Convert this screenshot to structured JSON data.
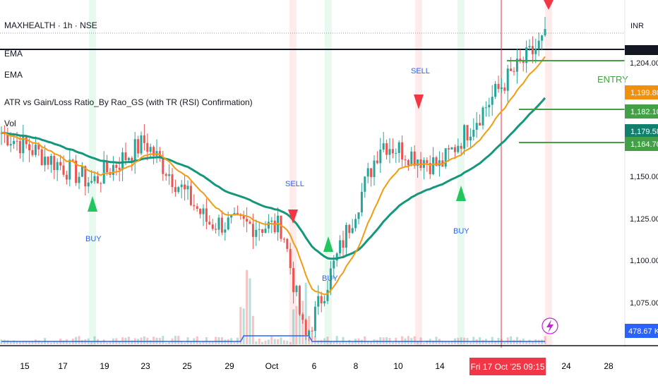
{
  "header": {
    "symbol": "MAXHEALTH · 1h · NSE",
    "indicator_1": "EMA",
    "indicator_2": "EMA",
    "indicator_3": "ATR vs Gain/Loss Ratio_By Rao_GS (with TR (RSI) Confirmation)",
    "indicator_4": "Vol"
  },
  "price_axis": {
    "currency": "INR",
    "ticks": [
      "1,204.00",
      "1,150.00",
      "1,125.00",
      "1,100.00",
      "1,075.00"
    ],
    "badges": [
      {
        "label": "1,199.80",
        "color": "#f0900c"
      },
      {
        "label": "1,182.10",
        "color": "#43a047"
      },
      {
        "label": "1,179.58",
        "color": "#12806e"
      },
      {
        "label": "1,164.70",
        "color": "#43a047"
      },
      {
        "label": "478.67 K",
        "color": "#2962ff"
      }
    ]
  },
  "time_axis": {
    "ticks": [
      "15",
      "17",
      "19",
      "23",
      "25",
      "29",
      "Oct",
      "6",
      "8",
      "10",
      "14",
      "Fri 17 Oct '25   09:15",
      "24",
      "28"
    ],
    "crosshair_label": "Fri 17 Oct '25   09:15"
  },
  "annotations": {
    "entry": "ENTRY",
    "signals": [
      {
        "text": "BUY",
        "type": "buy"
      },
      {
        "text": "SELL",
        "type": "sell"
      },
      {
        "text": "BUY",
        "type": "buy"
      },
      {
        "text": "SELL",
        "type": "sell"
      },
      {
        "text": "BUY",
        "type": "buy"
      },
      {
        "text": "",
        "type": "sell"
      }
    ]
  },
  "colors": {
    "up": "#26a69a",
    "down": "#ef5350",
    "ema_fast": "#f39c12",
    "ema_slow": "#15977b",
    "level": "#43a047",
    "buy": "#22c55e",
    "sell": "#f23645",
    "signal_text_buy": "#2962ff",
    "signal_text_sell": "#2962ff"
  },
  "chart_data": {
    "type": "candlestick",
    "title": "MAXHEALTH · 1h · NSE",
    "x_labels": [
      "15",
      "17",
      "19",
      "23",
      "25",
      "29",
      "Oct",
      "6",
      "8",
      "10",
      "14",
      "24",
      "28"
    ],
    "ylim": [
      1060,
      1225
    ],
    "segments": [
      {
        "start": "15 Sep",
        "end": "18 Sep",
        "from": 1165,
        "to": 1140
      },
      {
        "start": "18 Sep",
        "end": "23 Sep",
        "from": 1140,
        "to": 1160
      },
      {
        "start": "23 Sep",
        "end": "29 Sep",
        "from": 1160,
        "to": 1120
      },
      {
        "start": "29 Sep",
        "end": "3 Oct",
        "from": 1120,
        "to": 1118
      },
      {
        "start": "3 Oct",
        "end": "6 Oct",
        "from": 1118,
        "to": 1062
      },
      {
        "start": "6 Oct",
        "end": "10 Oct",
        "from": 1062,
        "to": 1160
      },
      {
        "start": "10 Oct",
        "end": "14 Oct",
        "from": 1160,
        "to": 1148
      },
      {
        "start": "14 Oct",
        "end": "17 Oct",
        "from": 1148,
        "to": 1190
      },
      {
        "start": "17 Oct",
        "end": "20 Oct",
        "from": 1190,
        "to": 1212
      }
    ],
    "levels": [
      {
        "label": "ENTRY",
        "value": 1206
      },
      {
        "value": 1182.1
      },
      {
        "value": 1164.7
      }
    ],
    "current_price_line": 1213,
    "series": [
      {
        "name": "EMA",
        "last": 1199.8
      },
      {
        "name": "EMA",
        "last": 1179.58
      }
    ],
    "volume_last": "478.67 K"
  }
}
